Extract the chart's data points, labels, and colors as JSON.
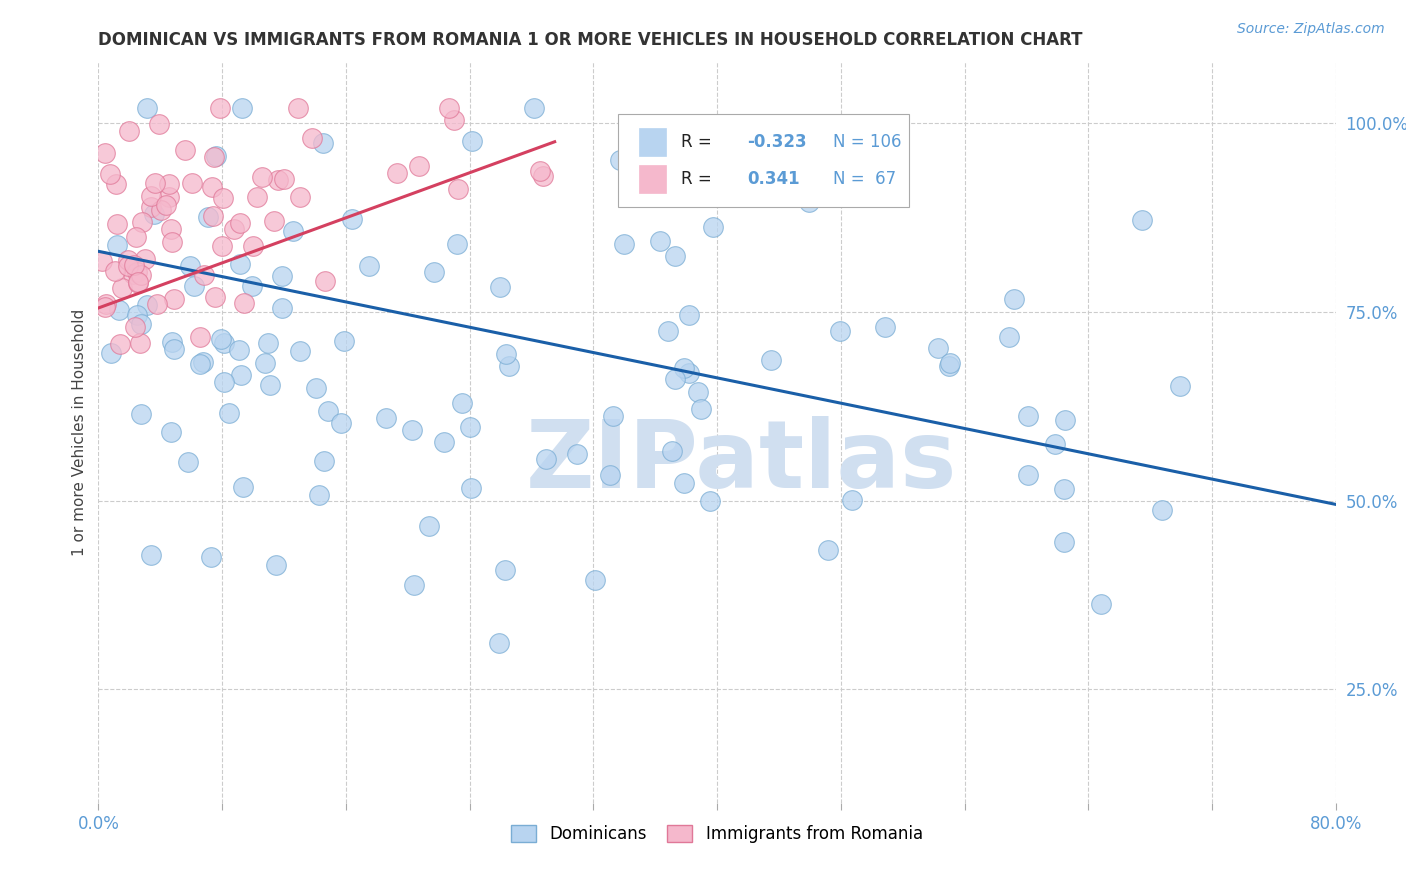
{
  "title": "DOMINICAN VS IMMIGRANTS FROM ROMANIA 1 OR MORE VEHICLES IN HOUSEHOLD CORRELATION CHART",
  "source_text": "Source: ZipAtlas.com",
  "ylabel": "1 or more Vehicles in Household",
  "xlim": [
    0.0,
    0.8
  ],
  "ylim": [
    0.1,
    1.08
  ],
  "x_ticks": [
    0.0,
    0.08,
    0.16,
    0.24,
    0.32,
    0.4,
    0.48,
    0.56,
    0.64,
    0.72,
    0.8
  ],
  "y_ticks": [
    0.25,
    0.5,
    0.75,
    1.0
  ],
  "y_tick_labels": [
    "25.0%",
    "50.0%",
    "75.0%",
    "100.0%"
  ],
  "R_blue": -0.323,
  "N_blue": 106,
  "R_pink": 0.341,
  "N_pink": 67,
  "blue_color": "#b8d4f0",
  "blue_edge": "#7aadd4",
  "blue_line": "#1a5fa8",
  "pink_color": "#f5b8cc",
  "pink_edge": "#e07898",
  "pink_line": "#d44060",
  "watermark": "ZIPatlas",
  "watermark_color": "#d0dff0",
  "grid_color": "#cccccc",
  "tick_color": "#5b9bd5",
  "title_color": "#333333",
  "blue_trend_x0": 0.0,
  "blue_trend_y0": 0.83,
  "blue_trend_x1": 0.8,
  "blue_trend_y1": 0.495,
  "pink_trend_x0": 0.0,
  "pink_trend_y0": 0.755,
  "pink_trend_x1": 0.295,
  "pink_trend_y1": 0.975
}
